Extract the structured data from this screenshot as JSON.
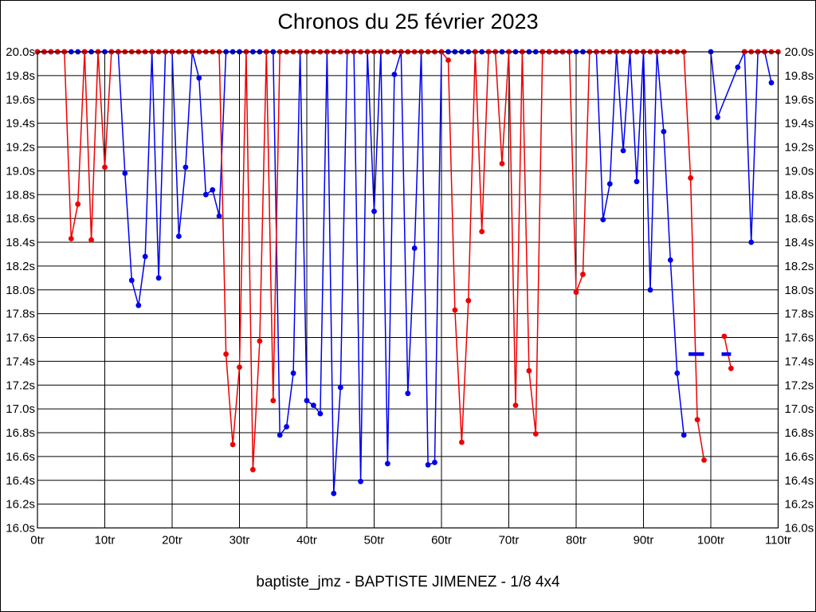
{
  "title": "Chronos du 25 février 2023",
  "caption": "baptiste_jmz - BAPTISTE JIMENEZ - 1/8 4x4",
  "chart_data": {
    "type": "line",
    "title": "Chronos du 25 février 2023",
    "subtitle": "baptiste_jmz - BAPTISTE JIMENEZ - 1/8 4x4",
    "xlabel": "",
    "ylabel": "",
    "x_unit": "tr",
    "y_unit": "s",
    "xlim": [
      0,
      110
    ],
    "ylim": [
      16.0,
      20.0
    ],
    "cap_value": 20.0,
    "grid": "on",
    "legend_position": "none",
    "x_ticks": [
      "0tr",
      "10tr",
      "20tr",
      "30tr",
      "40tr",
      "50tr",
      "60tr",
      "70tr",
      "80tr",
      "90tr",
      "100tr",
      "110tr"
    ],
    "y_ticks": [
      "20.0s",
      "19.8s",
      "19.6s",
      "19.4s",
      "19.2s",
      "19.0s",
      "18.8s",
      "18.6s",
      "18.4s",
      "18.2s",
      "18.0s",
      "17.8s",
      "17.6s",
      "17.4s",
      "17.2s",
      "17.0s",
      "16.8s",
      "16.6s",
      "16.4s",
      "16.2s",
      "16.0s"
    ],
    "series": [
      {
        "name": "blue-run",
        "color": "#0000ee",
        "runs": [
          [
            [
              0,
              20
            ],
            [
              1,
              20
            ],
            [
              2,
              20
            ],
            [
              3,
              20
            ],
            [
              4,
              20
            ],
            [
              5,
              20
            ],
            [
              6,
              20
            ],
            [
              7,
              20
            ],
            [
              8,
              20
            ],
            [
              9,
              20
            ],
            [
              10,
              20
            ],
            [
              11,
              20
            ],
            [
              12,
              20
            ],
            [
              13,
              18.98
            ],
            [
              14,
              18.08
            ],
            [
              15,
              17.87
            ],
            [
              16,
              18.28
            ],
            [
              17,
              20
            ],
            [
              18,
              18.1
            ],
            [
              19,
              20
            ],
            [
              20,
              20
            ],
            [
              21,
              18.45
            ],
            [
              22,
              19.03
            ],
            [
              23,
              20
            ],
            [
              24,
              19.78
            ],
            [
              25,
              18.8
            ],
            [
              26,
              18.84
            ],
            [
              27,
              18.62
            ],
            [
              28,
              20
            ],
            [
              29,
              20
            ],
            [
              30,
              20
            ],
            [
              31,
              20
            ],
            [
              32,
              20
            ],
            [
              33,
              20
            ],
            [
              34,
              20
            ],
            [
              35,
              20
            ],
            [
              36,
              16.78
            ],
            [
              37,
              16.85
            ],
            [
              38,
              17.3
            ],
            [
              39,
              20
            ],
            [
              40,
              17.07
            ],
            [
              41,
              17.03
            ],
            [
              42,
              16.96
            ],
            [
              43,
              20
            ],
            [
              44,
              16.29
            ],
            [
              45,
              17.18
            ],
            [
              46,
              20
            ],
            [
              47,
              20
            ],
            [
              48,
              16.39
            ],
            [
              49,
              20
            ],
            [
              50,
              18.66
            ],
            [
              51,
              20
            ],
            [
              52,
              16.54
            ],
            [
              53,
              19.81
            ],
            [
              54,
              20
            ],
            [
              55,
              17.13
            ],
            [
              56,
              18.35
            ],
            [
              57,
              20
            ],
            [
              58,
              16.53
            ],
            [
              59,
              16.55
            ],
            [
              60,
              20
            ],
            [
              61,
              20
            ],
            [
              62,
              20
            ],
            [
              63,
              20
            ],
            [
              64,
              20
            ],
            [
              65,
              20
            ],
            [
              66,
              20
            ],
            [
              67,
              20
            ],
            [
              68,
              20
            ],
            [
              69,
              20
            ],
            [
              70,
              20
            ],
            [
              71,
              20
            ],
            [
              72,
              20
            ],
            [
              73,
              20
            ],
            [
              74,
              20
            ],
            [
              75,
              20
            ],
            [
              76,
              20
            ],
            [
              77,
              20
            ],
            [
              78,
              20
            ],
            [
              79,
              20
            ],
            [
              80,
              20
            ],
            [
              81,
              20
            ],
            [
              82,
              20
            ],
            [
              83,
              20
            ],
            [
              84,
              18.59
            ],
            [
              85,
              18.89
            ],
            [
              86,
              20
            ],
            [
              87,
              19.17
            ],
            [
              88,
              20
            ],
            [
              89,
              18.91
            ],
            [
              90,
              20
            ],
            [
              91,
              18.0
            ],
            [
              92,
              20
            ],
            [
              93,
              19.33
            ],
            [
              94,
              18.25
            ],
            [
              95,
              17.3
            ],
            [
              96,
              16.78
            ]
          ],
          [
            [
              100,
              20
            ],
            [
              101,
              19.45
            ],
            [
              102,
              19.59,
              0
            ],
            [
              103,
              19.73,
              0
            ],
            [
              104,
              19.87
            ],
            [
              105,
              20
            ],
            [
              106,
              18.4
            ],
            [
              107,
              20
            ],
            [
              108,
              20
            ],
            [
              109,
              19.74
            ]
          ]
        ]
      },
      {
        "name": "red-run",
        "color": "#ee0000",
        "runs": [
          [
            [
              0,
              20
            ],
            [
              1,
              20
            ],
            [
              2,
              20
            ],
            [
              3,
              20
            ],
            [
              4,
              20
            ],
            [
              5,
              18.43
            ],
            [
              6,
              18.72
            ],
            [
              7,
              20
            ],
            [
              8,
              18.42
            ],
            [
              9,
              20
            ],
            [
              10,
              19.03
            ],
            [
              11,
              20
            ],
            [
              12,
              20
            ],
            [
              13,
              20
            ],
            [
              14,
              20
            ],
            [
              15,
              20
            ],
            [
              16,
              20
            ],
            [
              17,
              20
            ],
            [
              18,
              20
            ],
            [
              19,
              20
            ],
            [
              20,
              20
            ],
            [
              21,
              20
            ],
            [
              22,
              20
            ],
            [
              23,
              20
            ],
            [
              24,
              20
            ],
            [
              25,
              20
            ],
            [
              26,
              20
            ],
            [
              27,
              20
            ],
            [
              28,
              17.46
            ],
            [
              29,
              16.7
            ],
            [
              30,
              17.35
            ],
            [
              31,
              20
            ],
            [
              32,
              16.49
            ],
            [
              33,
              17.57
            ],
            [
              34,
              20
            ],
            [
              35,
              17.07
            ],
            [
              36,
              20
            ],
            [
              37,
              20
            ],
            [
              38,
              20
            ],
            [
              39,
              20
            ],
            [
              40,
              20
            ],
            [
              41,
              20
            ],
            [
              42,
              20
            ],
            [
              43,
              20
            ],
            [
              44,
              20
            ],
            [
              45,
              20
            ],
            [
              46,
              20
            ],
            [
              47,
              20
            ],
            [
              48,
              20
            ],
            [
              49,
              20
            ],
            [
              50,
              20
            ],
            [
              51,
              20
            ],
            [
              52,
              20
            ],
            [
              53,
              20
            ],
            [
              54,
              20
            ],
            [
              55,
              20
            ],
            [
              56,
              20
            ],
            [
              57,
              20
            ],
            [
              58,
              20
            ],
            [
              59,
              20
            ],
            [
              60,
              20
            ],
            [
              61,
              19.93
            ],
            [
              62,
              17.83
            ],
            [
              63,
              16.72
            ],
            [
              64,
              17.91
            ],
            [
              65,
              20
            ],
            [
              66,
              18.49
            ],
            [
              67,
              20
            ],
            [
              68,
              20
            ],
            [
              69,
              19.06
            ],
            [
              70,
              20
            ],
            [
              71,
              17.03
            ],
            [
              72,
              20
            ],
            [
              73,
              17.32
            ],
            [
              74,
              16.79
            ],
            [
              75,
              20
            ],
            [
              76,
              20
            ],
            [
              77,
              20
            ],
            [
              78,
              20
            ],
            [
              79,
              20
            ],
            [
              80,
              17.98
            ],
            [
              81,
              18.13
            ],
            [
              82,
              20
            ],
            [
              83,
              20
            ],
            [
              84,
              20
            ],
            [
              85,
              20
            ],
            [
              86,
              20
            ],
            [
              87,
              20
            ],
            [
              88,
              20
            ],
            [
              89,
              20
            ],
            [
              90,
              20
            ],
            [
              91,
              20
            ],
            [
              92,
              20
            ],
            [
              93,
              20
            ],
            [
              94,
              20
            ],
            [
              95,
              20
            ],
            [
              96,
              20
            ],
            [
              97,
              18.94
            ],
            [
              98,
              16.91
            ],
            [
              99,
              16.57
            ]
          ],
          [
            [
              102,
              17.61
            ],
            [
              103,
              17.34
            ]
          ],
          [
            [
              105,
              20
            ],
            [
              106,
              20
            ],
            [
              107,
              20
            ],
            [
              108,
              20
            ],
            [
              109,
              20
            ],
            [
              110,
              20
            ]
          ]
        ]
      }
    ],
    "markers": [
      {
        "name": "avg-dash-1",
        "color": "#0000ee",
        "lap_start": 96.7,
        "lap_end": 99.0,
        "value": 17.46
      },
      {
        "name": "avg-dash-2",
        "color": "#0000ee",
        "lap_start": 101.6,
        "lap_end": 103.0,
        "value": 17.46
      }
    ]
  }
}
